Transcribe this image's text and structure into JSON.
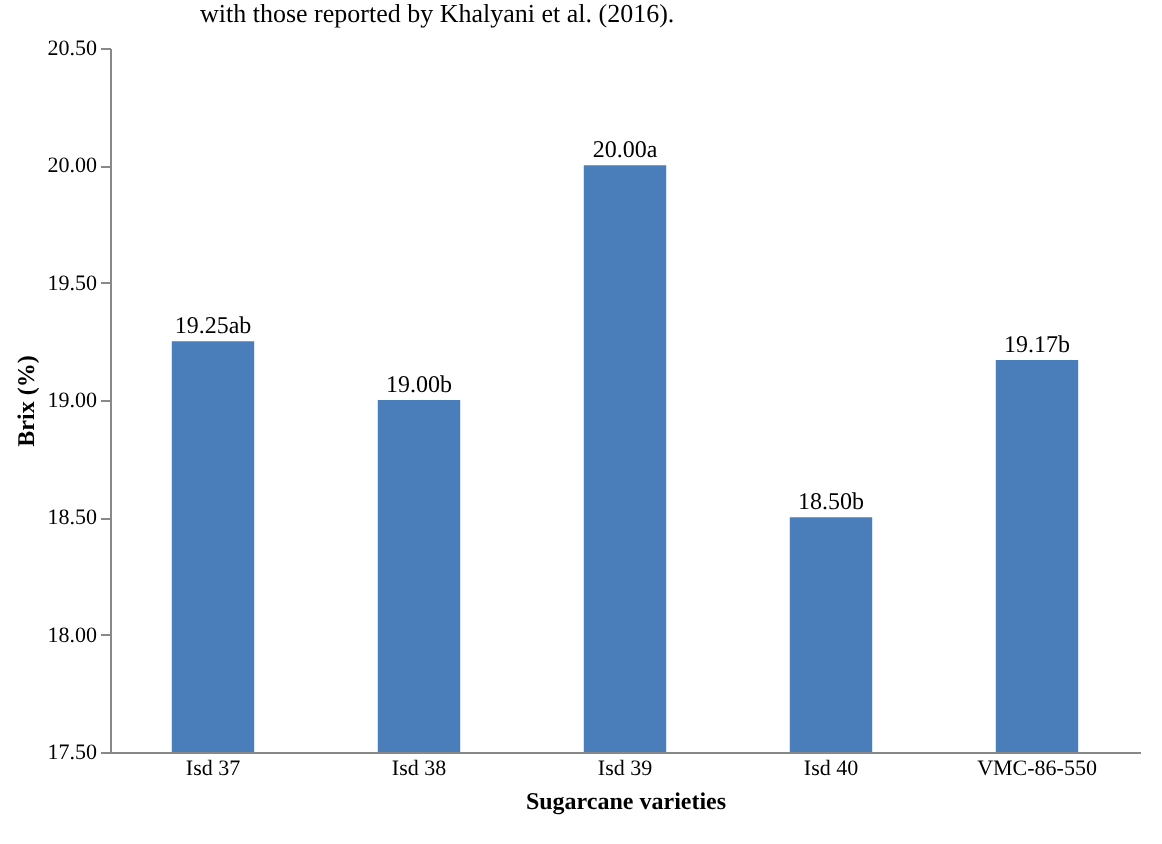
{
  "chart_data": {
    "type": "bar",
    "xlabel": "Sugarcane varieties",
    "ylabel": "Brix (%)",
    "annotations": [
      "with those reported by Khalyani et al. (2016)."
    ],
    "categories": [
      "Isd 37",
      "Isd 38",
      "Isd 39",
      "Isd 40",
      "VMC-86-550"
    ],
    "values": [
      19.25,
      19.0,
      20.0,
      18.5,
      19.17
    ],
    "value_labels": [
      "19.25ab",
      "19.00b",
      "20.00a",
      "18.50b",
      "19.17b"
    ],
    "color": "#4a7ebb",
    "ylim": [
      17.5,
      20.5
    ],
    "yticks": [
      {
        "value": 17.5,
        "label": "17.50"
      },
      {
        "value": 18,
        "label": "18.00"
      },
      {
        "value": 18.5,
        "label": "18.50"
      },
      {
        "value": 19,
        "label": "19.00"
      },
      {
        "value": 19.5,
        "label": "19.50"
      },
      {
        "value": 20,
        "label": "20.00"
      },
      {
        "value": 20.5,
        "label": "20.50"
      }
    ],
    "grid": false
  }
}
